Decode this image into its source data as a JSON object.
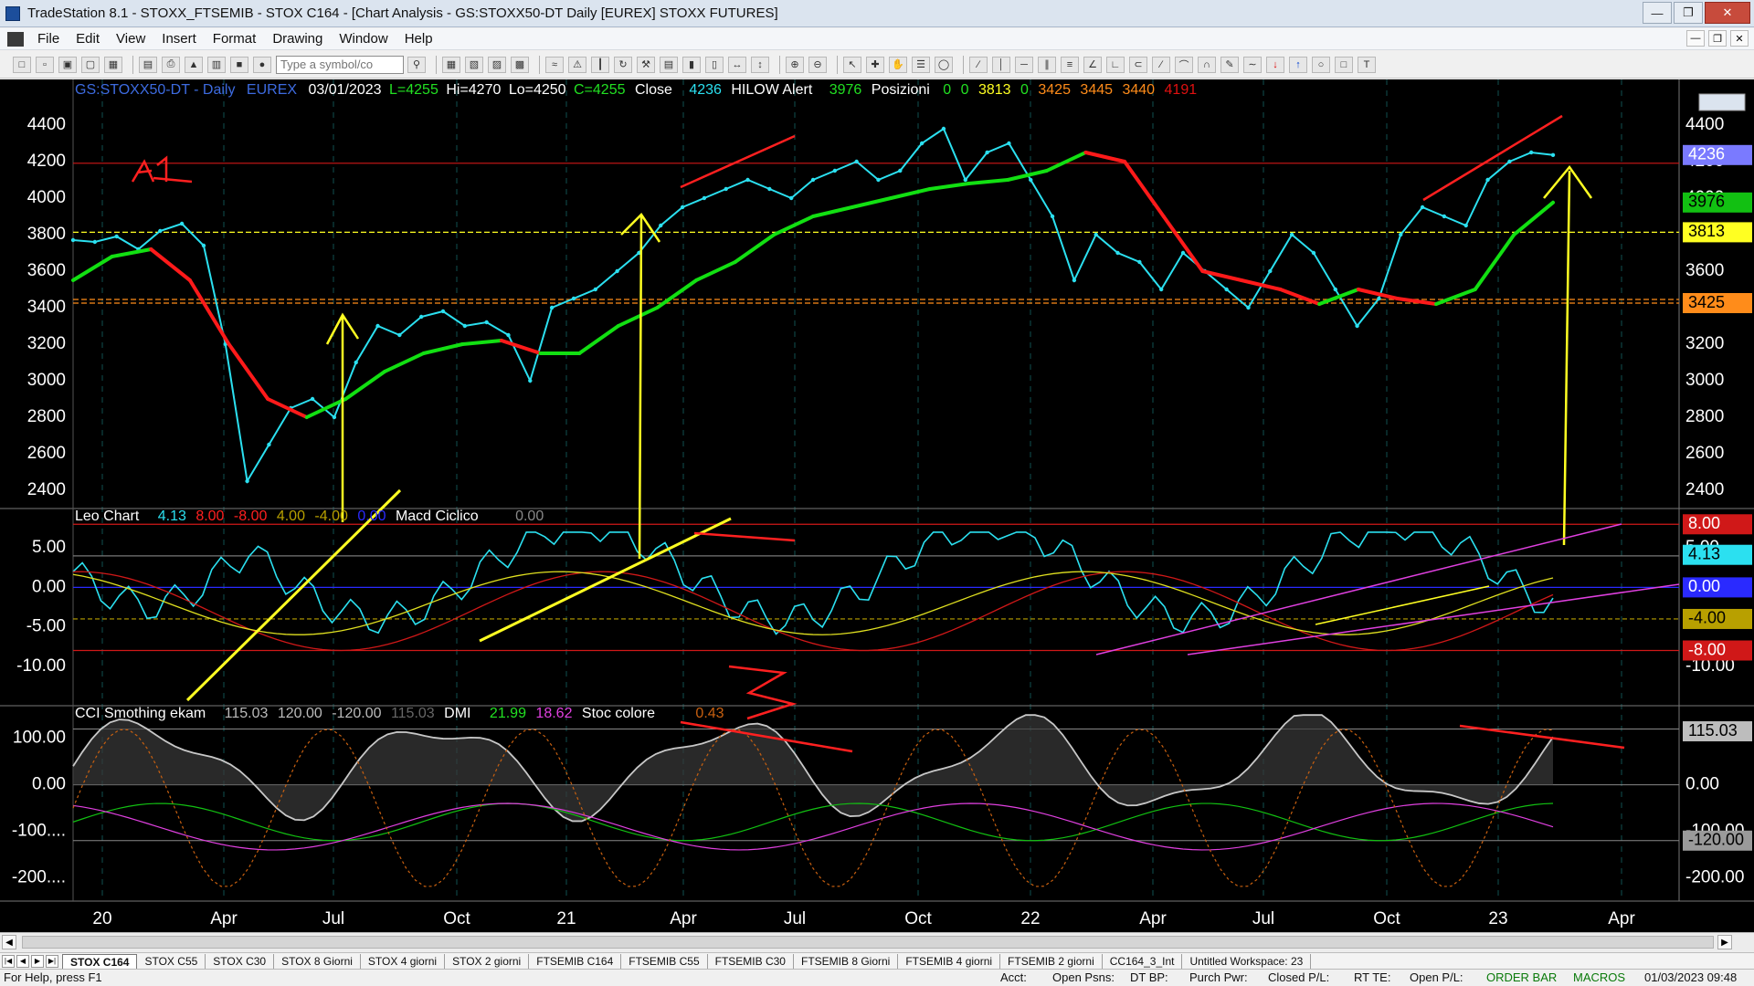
{
  "window": {
    "title": "TradeStation 8.1 - STOXX_FTSEMIB - STOX C164 - [Chart Analysis - GS:STOXX50-DT  Daily  [EUREX] STOXX FUTURES]"
  },
  "menu": {
    "items": [
      "File",
      "Edit",
      "View",
      "Insert",
      "Format",
      "Drawing",
      "Window",
      "Help"
    ]
  },
  "toolbar": {
    "symbol_placeholder": "Type a symbol/co"
  },
  "colors": {
    "background": "#000000",
    "price": "#2be0f0",
    "ma_up": "#12e012",
    "ma_down": "#ff1a1a",
    "annotation_yellow": "#ffff22",
    "annotation_red": "#ff2020",
    "magenta": "#e040e0",
    "cci_gray": "#c8c8c8"
  },
  "price_panel": {
    "header": {
      "symbol": "GS:STOXX50-DT - Daily",
      "exchange": "EUREX",
      "date": "03/01/2023",
      "last": "L=4255",
      "high": "Hi=4270",
      "low": "Lo=4250",
      "close": "C=4255",
      "close_label": "Close",
      "close_value": "4236",
      "hilow_label": "HILOW Alert",
      "hilow_value": "3976",
      "pos_label": "Posizioni",
      "pos_values": [
        "0",
        "0",
        "3813",
        "0",
        "3425",
        "3445",
        "3440",
        "4191"
      ]
    },
    "y_ticks": [
      "4400",
      "4200",
      "4000",
      "3800",
      "3600",
      "3400",
      "3200",
      "3000",
      "2800",
      "2600",
      "2400"
    ],
    "right_ticks": [
      "4400",
      "4200",
      "4000",
      "3800",
      "3600",
      "3200",
      "3000",
      "2800",
      "2600",
      "2400"
    ],
    "tags": {
      "close": "4236",
      "hilow": "3976",
      "level1": "3813",
      "level2": "3425",
      "ghost": "4191"
    }
  },
  "macd_panel": {
    "header": {
      "name": "Leo Chart",
      "v1": "4.13",
      "v2": "8.00",
      "v3": "-8.00",
      "v4": "4.00",
      "v5": "-4.00",
      "v6": "0.00",
      "name2": "Macd Ciclico",
      "v7": "0.00"
    },
    "y_ticks": [
      "5.00",
      "0.00",
      "-5.00",
      "-10.00"
    ],
    "right_ticks": [
      "5.00",
      "-10.00"
    ],
    "tags": {
      "upper": "8.00",
      "value": "4.13",
      "zero": "0.00",
      "mid": "-4.00",
      "lower": "-8.00"
    }
  },
  "cci_panel": {
    "header": {
      "name": "CCI Smothing ekam",
      "v1": "115.03",
      "v2": "120.00",
      "v3": "-120.00",
      "v4": "115.03",
      "dmi": "DMI",
      "dmi1": "21.99",
      "dmi2": "18.62",
      "stoc": "Stoc colore",
      "stoc_v": "0.43"
    },
    "y_ticks": [
      "100.00",
      "0.00",
      "-100....",
      "-200...."
    ],
    "right_ticks": [
      "0.00",
      "-100.00",
      "-200.00"
    ],
    "tags": {
      "value": "115.03",
      "lower": "-120.00"
    }
  },
  "x_axis": {
    "labels": [
      "20",
      "Apr",
      "Jul",
      "Oct",
      "21",
      "Apr",
      "Jul",
      "Oct",
      "22",
      "Apr",
      "Jul",
      "Oct",
      "23",
      "Apr"
    ]
  },
  "chart_data": {
    "type": "line",
    "x_labels": [
      "20",
      "Apr",
      "Jul",
      "Oct",
      "21",
      "Apr",
      "Jul",
      "Oct",
      "22",
      "Apr",
      "Jul",
      "Oct",
      "23",
      "Apr"
    ],
    "price_series": [
      {
        "name": "Close",
        "values": [
          3770,
          3760,
          3790,
          3720,
          3820,
          3860,
          3740,
          3200,
          2450,
          2650,
          2850,
          2900,
          2800,
          3100,
          3300,
          3250,
          3350,
          3380,
          3300,
          3320,
          3250,
          3000,
          3400,
          3450,
          3500,
          3600,
          3700,
          3850,
          3950,
          4000,
          4050,
          4100,
          4050,
          4000,
          4100,
          4150,
          4200,
          4100,
          4150,
          4300,
          4380,
          4100,
          4250,
          4300,
          4100,
          3900,
          3550,
          3800,
          3700,
          3650,
          3500,
          3700,
          3600,
          3500,
          3400,
          3600,
          3800,
          3700,
          3500,
          3300,
          3450,
          3800,
          3950,
          3900,
          3850,
          4100,
          4200,
          4250,
          4236
        ]
      },
      {
        "name": "HILOW Alert",
        "values": [
          3550,
          3680,
          3720,
          3550,
          3200,
          2900,
          2800,
          2900,
          3050,
          3150,
          3200,
          3220,
          3150,
          3150,
          3300,
          3400,
          3550,
          3650,
          3800,
          3900,
          3950,
          4000,
          4050,
          4080,
          4100,
          4150,
          4250,
          4200,
          3900,
          3600,
          3550,
          3500,
          3420,
          3500,
          3450,
          3420,
          3500,
          3800,
          3976
        ]
      }
    ],
    "price_ylim": [
      2300,
      4500
    ],
    "horizontal_levels": [
      4191,
      3813,
      3445,
      3425
    ],
    "macd_ylim": [
      -15,
      10
    ],
    "macd_levels": [
      8,
      4,
      0,
      -4,
      -8
    ],
    "cci_ylim": [
      -250,
      170
    ],
    "cci_levels": [
      120,
      0,
      -120
    ],
    "grid": false,
    "legend": "none"
  }
}
